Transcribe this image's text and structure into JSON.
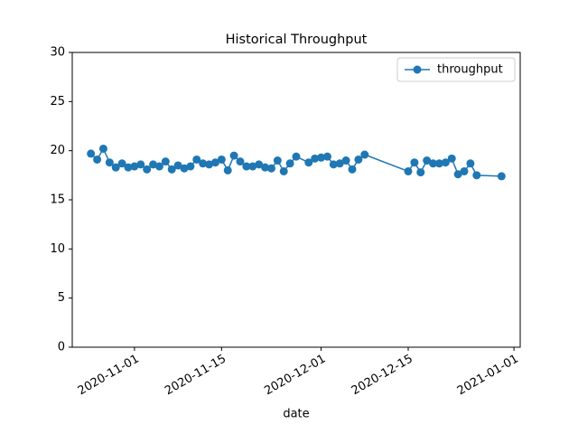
{
  "chart_data": {
    "type": "line",
    "title": "Historical Throughput",
    "x_label": "date",
    "x": [
      "2020-10-25",
      "2020-10-26",
      "2020-10-27",
      "2020-10-28",
      "2020-10-29",
      "2020-10-30",
      "2020-10-31",
      "2020-11-01",
      "2020-11-02",
      "2020-11-03",
      "2020-11-04",
      "2020-11-05",
      "2020-11-06",
      "2020-11-07",
      "2020-11-08",
      "2020-11-09",
      "2020-11-10",
      "2020-11-11",
      "2020-11-12",
      "2020-11-13",
      "2020-11-14",
      "2020-11-15",
      "2020-11-16",
      "2020-11-17",
      "2020-11-18",
      "2020-11-19",
      "2020-11-20",
      "2020-11-21",
      "2020-11-22",
      "2020-11-23",
      "2020-11-24",
      "2020-11-25",
      "2020-11-26",
      "2020-11-27",
      "2020-11-29",
      "2020-11-30",
      "2020-12-01",
      "2020-12-02",
      "2020-12-03",
      "2020-12-04",
      "2020-12-05",
      "2020-12-06",
      "2020-12-07",
      "2020-12-08",
      "2020-12-15",
      "2020-12-16",
      "2020-12-17",
      "2020-12-18",
      "2020-12-19",
      "2020-12-20",
      "2020-12-21",
      "2020-12-22",
      "2020-12-23",
      "2020-12-24",
      "2020-12-25",
      "2020-12-26",
      "2020-12-30"
    ],
    "series": [
      {
        "name": "throughput",
        "color": "#1f77b4",
        "values": [
          19.7,
          19.1,
          20.2,
          18.8,
          18.3,
          18.7,
          18.3,
          18.4,
          18.6,
          18.1,
          18.6,
          18.4,
          18.9,
          18.1,
          18.5,
          18.2,
          18.4,
          19.1,
          18.7,
          18.6,
          18.8,
          19.1,
          18.0,
          19.5,
          18.9,
          18.4,
          18.4,
          18.6,
          18.3,
          18.2,
          19.0,
          17.9,
          18.7,
          19.4,
          18.8,
          19.2,
          19.3,
          19.4,
          18.6,
          18.7,
          19.0,
          18.1,
          19.1,
          19.6,
          17.9,
          18.8,
          17.8,
          19.0,
          18.7,
          18.7,
          18.8,
          19.2,
          17.6,
          17.9,
          18.7,
          17.5,
          17.4
        ]
      }
    ],
    "xlim": [
      "2020-10-22",
      "2021-01-02"
    ],
    "xticks": [
      "2020-11-01",
      "2020-11-15",
      "2020-12-01",
      "2020-12-15",
      "2021-01-01"
    ],
    "ylim": [
      0,
      30
    ],
    "yticks": [
      0,
      5,
      10,
      15,
      20,
      25,
      30
    ],
    "legend": "upper right",
    "grid": false
  }
}
